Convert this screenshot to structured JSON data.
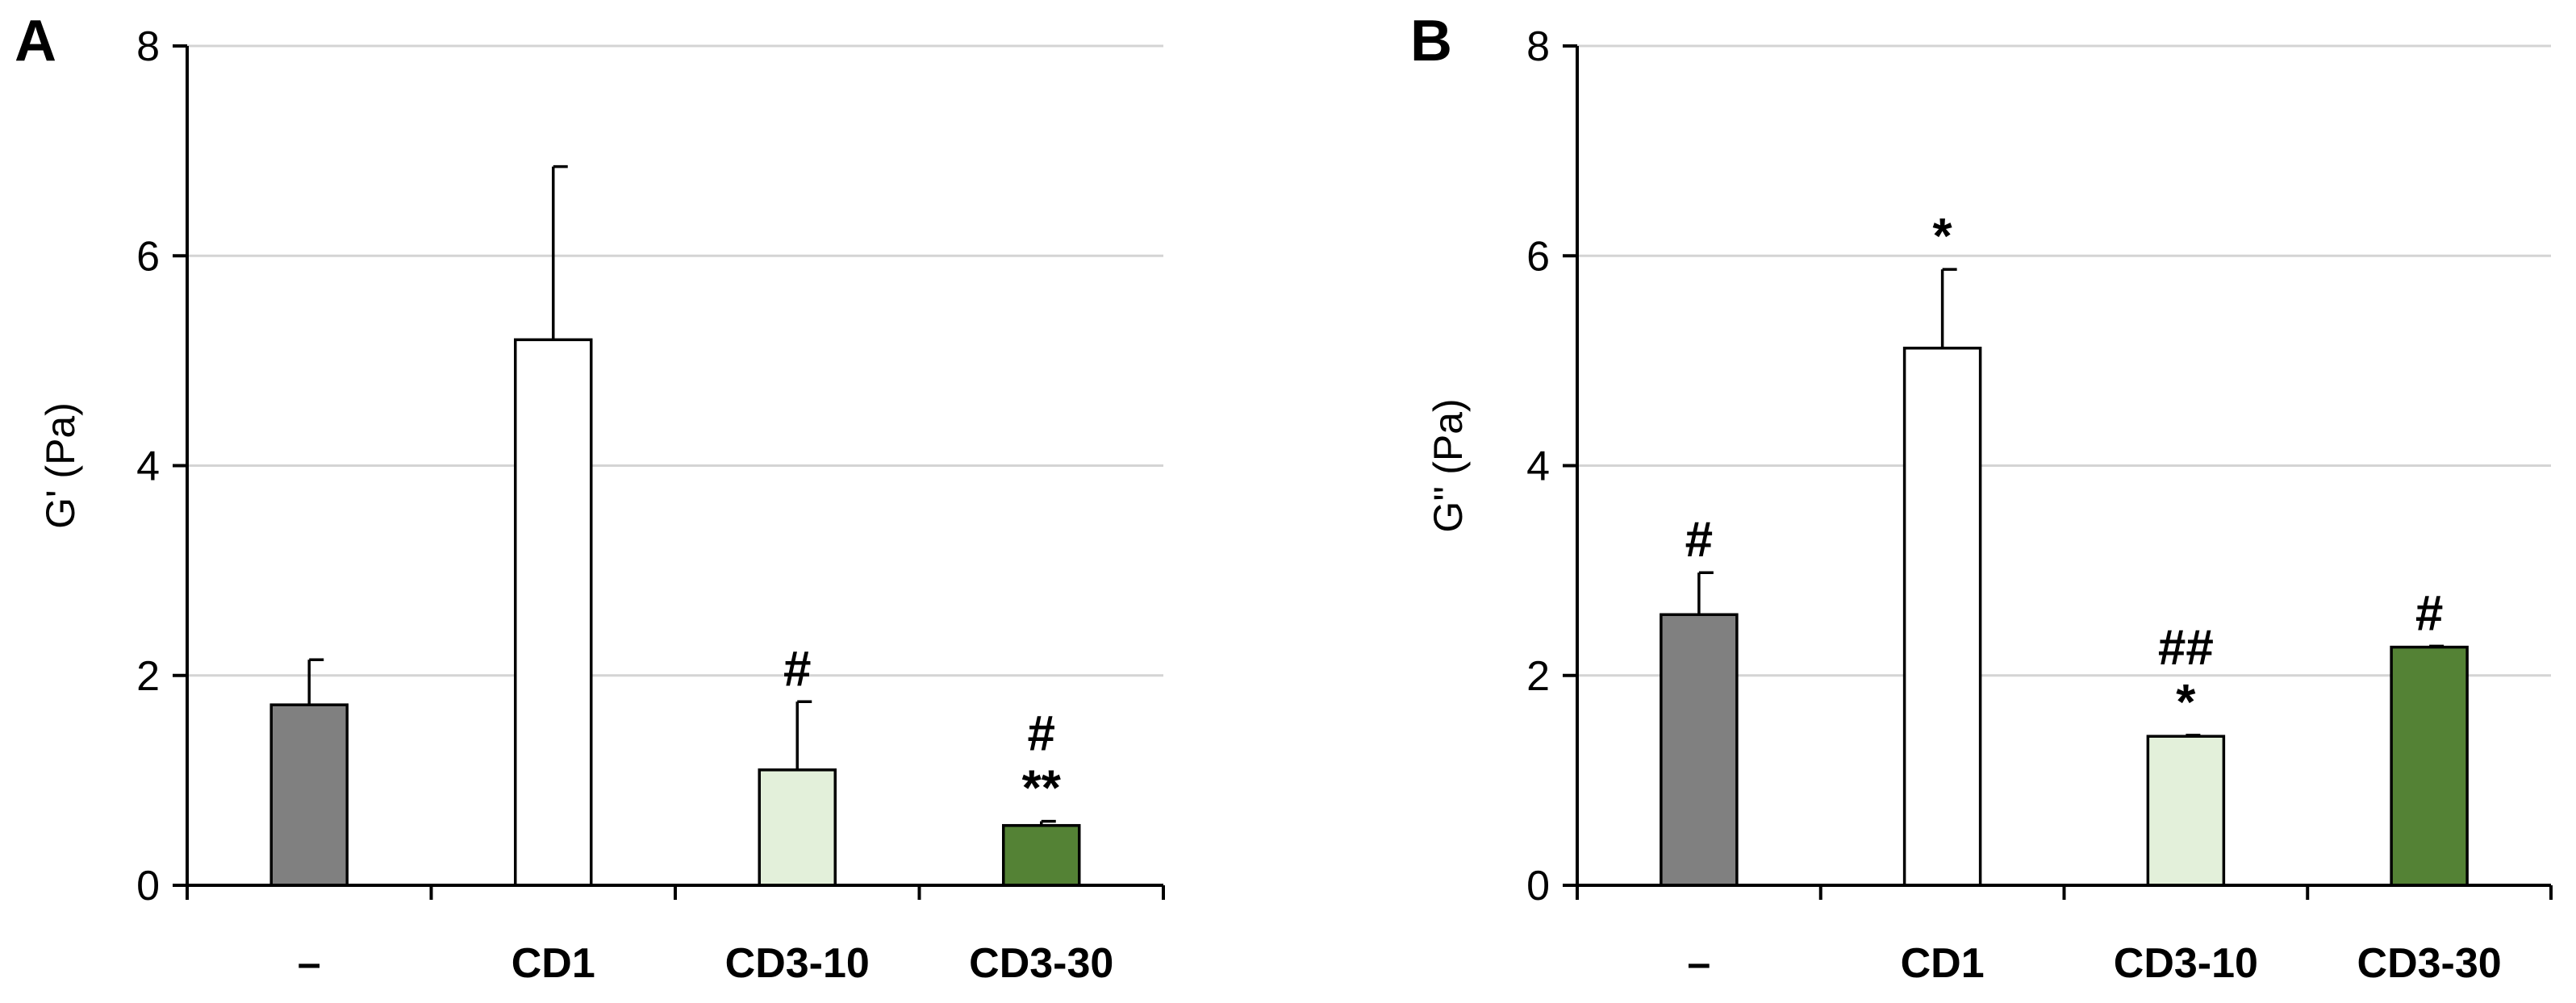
{
  "chart_data": [
    {
      "type": "bar",
      "panel_label": "A",
      "ylabel": "G' (Pa)",
      "xlabel": "",
      "ylim": [
        0,
        8
      ],
      "yticks": [
        "0",
        "2",
        "4",
        "6",
        "8"
      ],
      "grid": true,
      "categories": [
        "–",
        "CD1",
        "CD3-10",
        "CD3-30"
      ],
      "values": [
        1.72,
        5.2,
        1.1,
        0.57
      ],
      "errors": [
        0.43,
        1.65,
        0.65,
        0.04
      ],
      "colors": [
        "#808080",
        "#ffffff",
        "#e3f0da",
        "#548235"
      ],
      "annotations": [
        [],
        [],
        [
          "#"
        ],
        [
          "#",
          "**"
        ]
      ]
    },
    {
      "type": "bar",
      "panel_label": "B",
      "ylabel": "G'' (Pa)",
      "xlabel": "",
      "ylim": [
        0,
        8
      ],
      "yticks": [
        "0",
        "2",
        "4",
        "6",
        "8"
      ],
      "grid": true,
      "categories": [
        "–",
        "CD1",
        "CD3-10",
        "CD3-30"
      ],
      "values": [
        2.58,
        5.12,
        1.42,
        2.27
      ],
      "errors": [
        0.4,
        0.75,
        0.01,
        0.01
      ],
      "colors": [
        "#808080",
        "#ffffff",
        "#e3f0da",
        "#548235"
      ],
      "annotations": [
        [
          "#"
        ],
        [
          "*"
        ],
        [
          "##",
          "*"
        ],
        [
          "#"
        ]
      ]
    }
  ]
}
